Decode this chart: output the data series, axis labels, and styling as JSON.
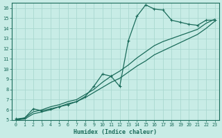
{
  "xlabel": "Humidex (Indice chaleur)",
  "ylabel": "",
  "xlim": [
    -0.5,
    23.5
  ],
  "ylim": [
    5,
    16.5
  ],
  "xticks": [
    0,
    1,
    2,
    3,
    4,
    5,
    6,
    7,
    8,
    9,
    10,
    11,
    12,
    13,
    14,
    15,
    16,
    17,
    18,
    19,
    20,
    21,
    22,
    23
  ],
  "yticks": [
    5,
    6,
    7,
    8,
    9,
    10,
    11,
    12,
    13,
    14,
    15,
    16
  ],
  "bg_color": "#c8ece6",
  "grid_color": "#aad8d0",
  "line_color": "#1a6b5a",
  "series": {
    "line1_x": [
      0,
      1,
      2,
      3,
      4,
      5,
      6,
      7,
      8,
      9,
      10,
      11,
      12,
      13,
      14,
      15,
      16,
      17,
      18,
      19,
      20,
      21,
      22,
      23
    ],
    "line1_y": [
      5.1,
      5.2,
      6.1,
      5.9,
      6.1,
      6.3,
      6.5,
      6.8,
      7.3,
      8.3,
      9.5,
      9.3,
      8.3,
      12.8,
      15.2,
      16.3,
      15.9,
      15.8,
      14.8,
      14.6,
      14.4,
      14.3,
      14.8,
      14.8
    ],
    "line2_x": [
      0,
      1,
      2,
      3,
      4,
      5,
      6,
      7,
      8,
      9,
      10,
      11,
      12,
      13,
      14,
      15,
      16,
      17,
      18,
      19,
      20,
      21,
      22,
      23
    ],
    "line2_y": [
      5.0,
      5.2,
      5.8,
      6.0,
      6.3,
      6.5,
      6.8,
      7.0,
      7.5,
      8.0,
      8.7,
      9.3,
      9.8,
      10.4,
      11.1,
      11.7,
      12.3,
      12.7,
      13.0,
      13.3,
      13.6,
      13.9,
      14.5,
      14.9
    ],
    "line3_x": [
      0,
      1,
      2,
      3,
      4,
      5,
      6,
      7,
      8,
      9,
      10,
      11,
      12,
      13,
      14,
      15,
      16,
      17,
      18,
      19,
      20,
      21,
      22,
      23
    ],
    "line3_y": [
      5.0,
      5.1,
      5.6,
      5.8,
      6.0,
      6.3,
      6.6,
      6.8,
      7.2,
      7.7,
      8.2,
      8.7,
      9.1,
      9.7,
      10.3,
      10.8,
      11.4,
      11.8,
      12.2,
      12.6,
      13.0,
      13.4,
      14.0,
      14.7
    ]
  }
}
